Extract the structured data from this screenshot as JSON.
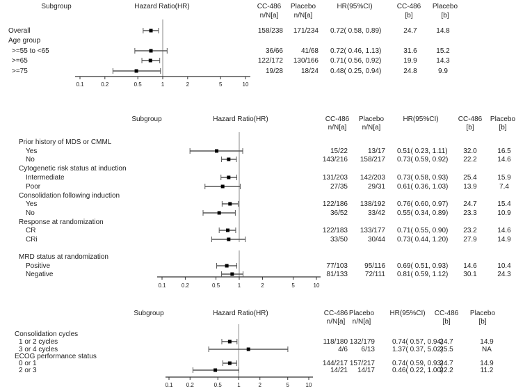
{
  "chart_data": [
    {
      "type": "forest",
      "x_scale": "log",
      "xlim": [
        0.1,
        10
      ],
      "ticks": [
        "0.1",
        "0.2",
        "0.5",
        "1",
        "2",
        "5",
        "10"
      ],
      "reference_line": 1,
      "headers": {
        "subgroup": "Subgroup",
        "hr": "Hazard Ratio(HR)",
        "cc1": "CC-486",
        "cc2": "n/N[a]",
        "pl1": "Placebo",
        "pl2": "n/N[a]",
        "ci": "HR(95%CI)",
        "ccb1": "CC-486",
        "ccb2": "[b]",
        "plb1": "Placebo",
        "plb2": "[b]"
      },
      "rows": [
        {
          "label": "Overall",
          "indent": false,
          "hr": 0.72,
          "lo": 0.58,
          "hi": 0.89,
          "cc": "158/238",
          "pl": "171/234",
          "ci": "0.72( 0.58, 0.89)",
          "ccb": "24.7",
          "plb": "14.8"
        },
        {
          "label": "Age group",
          "indent": false
        },
        {
          "label": ">=55 to <65",
          "indent": true,
          "hr": 0.72,
          "lo": 0.46,
          "hi": 1.13,
          "cc": "36/66",
          "pl": "41/68",
          "ci": "0.72( 0.46, 1.13)",
          "ccb": "31.6",
          "plb": "15.2"
        },
        {
          "label": ">=65",
          "indent": true,
          "hr": 0.71,
          "lo": 0.56,
          "hi": 0.92,
          "cc": "122/172",
          "pl": "130/166",
          "ci": "0.71( 0.56, 0.92)",
          "ccb": "19.9",
          "plb": "14.3"
        },
        {
          "label": ">=75",
          "indent": true,
          "hr": 0.48,
          "lo": 0.25,
          "hi": 0.94,
          "cc": "19/28",
          "pl": "18/24",
          "ci": "0.48( 0.25, 0.94)",
          "ccb": "24.8",
          "plb": "9.9"
        }
      ]
    },
    {
      "type": "forest",
      "x_scale": "log",
      "xlim": [
        0.1,
        10
      ],
      "ticks": [
        "0.1",
        "0.2",
        "0.5",
        "1",
        "2",
        "5",
        "10"
      ],
      "reference_line": 1,
      "headers": {
        "subgroup": "Subgroup",
        "hr": "Hazard Ratio(HR)",
        "cc1": "CC-486",
        "cc2": "n/N[a]",
        "pl1": "Placebo",
        "pl2": "n/N[a]",
        "ci": "HR(95%CI)",
        "ccb1": "CC-486",
        "ccb2": "[b]",
        "plb1": "Placebo",
        "plb2": "[b]"
      },
      "rows": [
        {
          "label": "Prior history of MDS or CMML",
          "indent": false
        },
        {
          "label": "Yes",
          "indent": true,
          "hr": 0.51,
          "lo": 0.23,
          "hi": 1.11,
          "cc": "15/22",
          "pl": "13/17",
          "ci": "0.51( 0.23, 1.11)",
          "ccb": "32.0",
          "plb": "16.5"
        },
        {
          "label": "No",
          "indent": true,
          "hr": 0.73,
          "lo": 0.59,
          "hi": 0.92,
          "cc": "143/216",
          "pl": "158/217",
          "ci": "0.73( 0.59, 0.92)",
          "ccb": "22.2",
          "plb": "14.6"
        },
        {
          "label": "Cytogenetic risk status at induction",
          "indent": false
        },
        {
          "label": "Intermediate",
          "indent": true,
          "hr": 0.73,
          "lo": 0.58,
          "hi": 0.93,
          "cc": "131/203",
          "pl": "142/203",
          "ci": "0.73( 0.58, 0.93)",
          "ccb": "25.4",
          "plb": "15.9"
        },
        {
          "label": "Poor",
          "indent": true,
          "hr": 0.61,
          "lo": 0.36,
          "hi": 1.03,
          "cc": "27/35",
          "pl": "29/31",
          "ci": "0.61( 0.36, 1.03)",
          "ccb": "13.9",
          "plb": "7.4"
        },
        {
          "label": "Consolidation following induction",
          "indent": false
        },
        {
          "label": "Yes",
          "indent": true,
          "hr": 0.76,
          "lo": 0.6,
          "hi": 0.97,
          "cc": "122/186",
          "pl": "138/192",
          "ci": "0.76( 0.60, 0.97)",
          "ccb": "24.7",
          "plb": "15.4"
        },
        {
          "label": "No",
          "indent": true,
          "hr": 0.55,
          "lo": 0.34,
          "hi": 0.89,
          "cc": "36/52",
          "pl": "33/42",
          "ci": "0.55( 0.34, 0.89)",
          "ccb": "23.3",
          "plb": "10.9"
        },
        {
          "label": "Response at randomization",
          "indent": false
        },
        {
          "label": "CR",
          "indent": true,
          "hr": 0.71,
          "lo": 0.55,
          "hi": 0.9,
          "cc": "122/183",
          "pl": "133/177",
          "ci": "0.71( 0.55, 0.90)",
          "ccb": "23.2",
          "plb": "14.6"
        },
        {
          "label": "CRi",
          "indent": true,
          "hr": 0.73,
          "lo": 0.44,
          "hi": 1.2,
          "cc": "33/50",
          "pl": "30/44",
          "ci": "0.73( 0.44, 1.20)",
          "ccb": "27.9",
          "plb": "14.9"
        },
        {
          "label": "MRD status at randomization",
          "indent": false
        },
        {
          "label": "Positive",
          "indent": true,
          "hr": 0.69,
          "lo": 0.51,
          "hi": 0.93,
          "cc": "77/103",
          "pl": "95/116",
          "ci": "0.69( 0.51, 0.93)",
          "ccb": "14.6",
          "plb": "10.4"
        },
        {
          "label": "Negative",
          "indent": true,
          "hr": 0.81,
          "lo": 0.59,
          "hi": 1.12,
          "cc": "81/133",
          "pl": "72/111",
          "ci": "0.81( 0.59, 1.12)",
          "ccb": "30.1",
          "plb": "24.3"
        }
      ]
    },
    {
      "type": "forest",
      "x_scale": "log",
      "xlim": [
        0.1,
        10
      ],
      "ticks": [
        "0.1",
        "0.2",
        "0.5",
        "1",
        "2",
        "5",
        "10"
      ],
      "reference_line": 1,
      "headers": {
        "subgroup": "Subgroup",
        "hr": "Hazard Ratio(HR)",
        "cc1": "CC-486",
        "cc2": "n/N[a]",
        "pl1": "Placebo",
        "pl2": "n/N[a]",
        "ci": "HR(95%CI)",
        "ccb1": "CC-486",
        "ccb2": "[b]",
        "plb1": "Placebo",
        "plb2": "[b]"
      },
      "rows": [
        {
          "label": "Consolidation cycles",
          "indent": false
        },
        {
          "label": "1 or 2 cycles",
          "indent": true,
          "hr": 0.74,
          "lo": 0.57,
          "hi": 0.94,
          "cc": "118/180",
          "pl": "132/179",
          "ci": "0.74( 0.57, 0.94)",
          "ccb": "24.7",
          "plb": "14.9"
        },
        {
          "label": "3 or 4 cycles",
          "indent": true,
          "hr": 1.37,
          "lo": 0.37,
          "hi": 5.02,
          "cc": "4/6",
          "pl": "6/13",
          "ci": "1.37( 0.37, 5.02)",
          "ccb": "25.5",
          "plb": "NA"
        },
        {
          "label": "ECOG performance status",
          "indent": false
        },
        {
          "label": "0 or 1",
          "indent": true,
          "hr": 0.74,
          "lo": 0.59,
          "hi": 0.93,
          "cc": "144/217",
          "pl": "157/217",
          "ci": "0.74( 0.59, 0.93)",
          "ccb": "24.7",
          "plb": "14.9"
        },
        {
          "label": "2 or 3",
          "indent": true,
          "hr": 0.46,
          "lo": 0.22,
          "hi": 1.0,
          "cc": "14/21",
          "pl": "14/17",
          "ci": "0.46( 0.22, 1.00)",
          "ccb": "22.2",
          "plb": "11.2"
        }
      ]
    }
  ],
  "colors": {
    "text": "#222222",
    "marker": "#000000",
    "ci_line": "#555555",
    "reference_line": "#888888"
  }
}
